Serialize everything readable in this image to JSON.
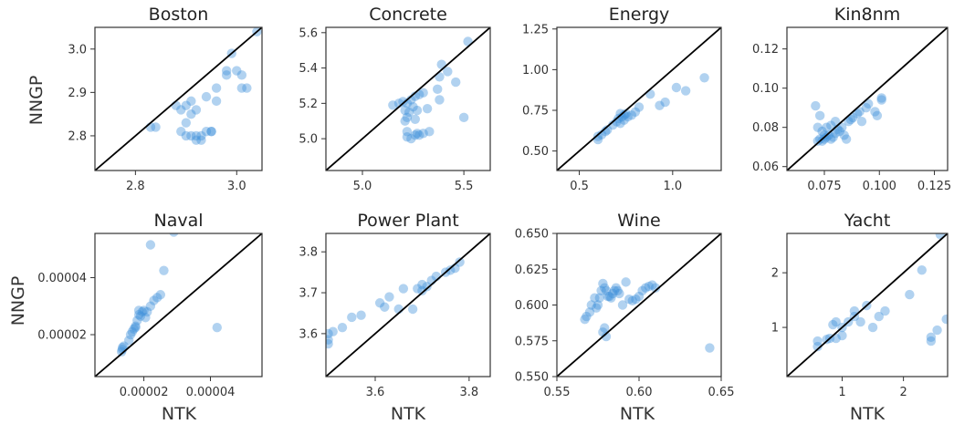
{
  "figure": {
    "ylabel": "NNGP",
    "xlabel": "NTK"
  },
  "style": {
    "point_color": "#3d8fd9",
    "diag_color": "#000000",
    "axis_color": "#333333"
  },
  "chart_data": [
    {
      "type": "scatter",
      "title": "Boston",
      "xlim": [
        2.72,
        3.05
      ],
      "ylim": [
        2.72,
        3.05
      ],
      "xticks": [
        2.8,
        3.0
      ],
      "yticks": [
        2.8,
        2.9,
        3.0
      ],
      "points": [
        [
          2.83,
          2.82
        ],
        [
          2.84,
          2.82
        ],
        [
          2.88,
          2.87
        ],
        [
          2.89,
          2.86
        ],
        [
          2.9,
          2.87
        ],
        [
          2.91,
          2.88
        ],
        [
          2.9,
          2.83
        ],
        [
          2.89,
          2.81
        ],
        [
          2.9,
          2.8
        ],
        [
          2.91,
          2.8
        ],
        [
          2.92,
          2.79
        ],
        [
          2.92,
          2.8
        ],
        [
          2.93,
          2.8
        ],
        [
          2.94,
          2.81
        ],
        [
          2.95,
          2.81
        ],
        [
          2.92,
          2.86
        ],
        [
          2.94,
          2.89
        ],
        [
          2.96,
          2.91
        ],
        [
          2.96,
          2.88
        ],
        [
          2.98,
          2.94
        ],
        [
          2.98,
          2.95
        ],
        [
          3.0,
          2.95
        ],
        [
          3.01,
          2.94
        ],
        [
          3.01,
          2.91
        ],
        [
          3.02,
          2.91
        ],
        [
          2.99,
          2.99
        ],
        [
          3.04,
          3.04
        ],
        [
          2.95,
          2.81
        ],
        [
          2.93,
          2.79
        ],
        [
          2.91,
          2.85
        ]
      ]
    },
    {
      "type": "scatter",
      "title": "Concrete",
      "xlim": [
        4.82,
        5.63
      ],
      "ylim": [
        4.82,
        5.63
      ],
      "xticks": [
        5.0,
        5.5
      ],
      "yticks": [
        5.0,
        5.2,
        5.4,
        5.6
      ],
      "points": [
        [
          5.15,
          5.19
        ],
        [
          5.18,
          5.2
        ],
        [
          5.2,
          5.21
        ],
        [
          5.22,
          5.2
        ],
        [
          5.24,
          5.22
        ],
        [
          5.26,
          5.24
        ],
        [
          5.28,
          5.25
        ],
        [
          5.3,
          5.26
        ],
        [
          5.21,
          5.16
        ],
        [
          5.23,
          5.15
        ],
        [
          5.22,
          5.12
        ],
        [
          5.21,
          5.1
        ],
        [
          5.22,
          5.04
        ],
        [
          5.22,
          5.01
        ],
        [
          5.24,
          5.0
        ],
        [
          5.26,
          5.02
        ],
        [
          5.27,
          5.03
        ],
        [
          5.28,
          5.02
        ],
        [
          5.3,
          5.03
        ],
        [
          5.33,
          5.04
        ],
        [
          5.26,
          5.11
        ],
        [
          5.27,
          5.16
        ],
        [
          5.32,
          5.17
        ],
        [
          5.37,
          5.28
        ],
        [
          5.38,
          5.35
        ],
        [
          5.39,
          5.42
        ],
        [
          5.42,
          5.38
        ],
        [
          5.46,
          5.32
        ],
        [
          5.5,
          5.12
        ],
        [
          5.52,
          5.55
        ],
        [
          5.38,
          5.22
        ],
        [
          5.25,
          5.18
        ]
      ]
    },
    {
      "type": "scatter",
      "title": "Energy",
      "xlim": [
        0.38,
        1.26
      ],
      "ylim": [
        0.38,
        1.26
      ],
      "xticks": [
        0.5,
        1.0
      ],
      "yticks": [
        0.5,
        0.75,
        1.0,
        1.25
      ],
      "points": [
        [
          0.6,
          0.57
        ],
        [
          0.6,
          0.59
        ],
        [
          0.62,
          0.6
        ],
        [
          0.64,
          0.62
        ],
        [
          0.65,
          0.63
        ],
        [
          0.68,
          0.66
        ],
        [
          0.7,
          0.68
        ],
        [
          0.71,
          0.7
        ],
        [
          0.73,
          0.71
        ],
        [
          0.74,
          0.72
        ],
        [
          0.75,
          0.73
        ],
        [
          0.74,
          0.69
        ],
        [
          0.76,
          0.71
        ],
        [
          0.72,
          0.67
        ],
        [
          0.78,
          0.72
        ],
        [
          0.8,
          0.74
        ],
        [
          0.82,
          0.77
        ],
        [
          0.88,
          0.85
        ],
        [
          0.93,
          0.78
        ],
        [
          0.96,
          0.8
        ],
        [
          1.02,
          0.89
        ],
        [
          1.07,
          0.87
        ],
        [
          1.17,
          0.95
        ],
        [
          0.72,
          0.73
        ]
      ]
    },
    {
      "type": "scatter",
      "title": "Kin8nm",
      "xlim": [
        0.058,
        0.131
      ],
      "ylim": [
        0.058,
        0.131
      ],
      "xticks": [
        0.075,
        0.1,
        0.125
      ],
      "yticks": [
        0.06,
        0.08,
        0.1,
        0.12
      ],
      "points": [
        [
          0.071,
          0.091
        ],
        [
          0.073,
          0.086
        ],
        [
          0.072,
          0.08
        ],
        [
          0.074,
          0.078
        ],
        [
          0.076,
          0.08
        ],
        [
          0.073,
          0.074
        ],
        [
          0.074,
          0.073
        ],
        [
          0.075,
          0.074
        ],
        [
          0.076,
          0.075
        ],
        [
          0.077,
          0.076
        ],
        [
          0.078,
          0.074
        ],
        [
          0.079,
          0.075
        ],
        [
          0.08,
          0.077
        ],
        [
          0.081,
          0.079
        ],
        [
          0.082,
          0.078
        ],
        [
          0.083,
          0.08
        ],
        [
          0.084,
          0.076
        ],
        [
          0.085,
          0.074
        ],
        [
          0.086,
          0.083
        ],
        [
          0.087,
          0.084
        ],
        [
          0.088,
          0.085
        ],
        [
          0.09,
          0.087
        ],
        [
          0.091,
          0.088
        ],
        [
          0.092,
          0.083
        ],
        [
          0.094,
          0.09
        ],
        [
          0.095,
          0.092
        ],
        [
          0.098,
          0.088
        ],
        [
          0.099,
          0.086
        ],
        [
          0.101,
          0.094
        ],
        [
          0.101,
          0.095
        ],
        [
          0.072,
          0.073
        ],
        [
          0.075,
          0.076
        ],
        [
          0.078,
          0.081
        ],
        [
          0.08,
          0.083
        ]
      ]
    },
    {
      "type": "scatter",
      "title": "Naval",
      "xlim": [
        5.3e-06,
        5.55e-05
      ],
      "ylim": [
        5.3e-06,
        5.55e-05
      ],
      "xticks": [
        2e-05,
        4e-05
      ],
      "yticks": [
        2e-05,
        4e-05
      ],
      "xtick_labels": [
        "0.00002",
        "0.00004"
      ],
      "ytick_labels": [
        "0.00002",
        "0.00004"
      ],
      "points": [
        [
          1.33e-05,
          1.4e-05
        ],
        [
          1.35e-05,
          1.48e-05
        ],
        [
          1.36e-05,
          1.55e-05
        ],
        [
          1.4e-05,
          1.6e-05
        ],
        [
          1.55e-05,
          1.8e-05
        ],
        [
          1.6e-05,
          2e-05
        ],
        [
          1.65e-05,
          2.1e-05
        ],
        [
          1.7e-05,
          2.2e-05
        ],
        [
          1.75e-05,
          2.25e-05
        ],
        [
          1.8e-05,
          2.5e-05
        ],
        [
          1.85e-05,
          2.7e-05
        ],
        [
          1.9e-05,
          2.65e-05
        ],
        [
          1.95e-05,
          2.8e-05
        ],
        [
          2e-05,
          2.85e-05
        ],
        [
          2.05e-05,
          2.6e-05
        ],
        [
          2.1e-05,
          2.8e-05
        ],
        [
          2.2e-05,
          3e-05
        ],
        [
          2.3e-05,
          3.2e-05
        ],
        [
          2.4e-05,
          3.3e-05
        ],
        [
          2.5e-05,
          3.4e-05
        ],
        [
          2.6e-05,
          4.25e-05
        ],
        [
          2.2e-05,
          5.15e-05
        ],
        [
          2.9e-05,
          5.6e-05
        ],
        [
          4.2e-05,
          2.25e-05
        ],
        [
          1.75e-05,
          2.3e-05
        ],
        [
          1.85e-05,
          2.85e-05
        ]
      ]
    },
    {
      "type": "scatter",
      "title": "Power Plant",
      "xlim": [
        3.495,
        3.845
      ],
      "ylim": [
        3.495,
        3.845
      ],
      "xticks": [
        3.6,
        3.8
      ],
      "yticks": [
        3.6,
        3.7,
        3.8
      ],
      "points": [
        [
          3.5,
          3.575
        ],
        [
          3.5,
          3.585
        ],
        [
          3.5,
          3.6
        ],
        [
          3.51,
          3.605
        ],
        [
          3.53,
          3.615
        ],
        [
          3.55,
          3.64
        ],
        [
          3.57,
          3.645
        ],
        [
          3.61,
          3.675
        ],
        [
          3.62,
          3.665
        ],
        [
          3.63,
          3.69
        ],
        [
          3.65,
          3.66
        ],
        [
          3.66,
          3.71
        ],
        [
          3.68,
          3.66
        ],
        [
          3.69,
          3.71
        ],
        [
          3.7,
          3.705
        ],
        [
          3.71,
          3.715
        ],
        [
          3.72,
          3.73
        ],
        [
          3.73,
          3.74
        ],
        [
          3.75,
          3.75
        ],
        [
          3.76,
          3.755
        ],
        [
          3.77,
          3.76
        ],
        [
          3.78,
          3.775
        ],
        [
          3.7,
          3.72
        ]
      ]
    },
    {
      "type": "scatter",
      "title": "Wine",
      "xlim": [
        0.55,
        0.65
      ],
      "ylim": [
        0.55,
        0.65
      ],
      "xticks": [
        0.55,
        0.6,
        0.65
      ],
      "yticks": [
        0.55,
        0.575,
        0.6,
        0.625,
        0.65
      ],
      "xtick_labels": [
        "0.55",
        "0.60",
        "0.65"
      ],
      "ytick_labels": [
        "0.550",
        "0.575",
        "0.600",
        "0.625",
        "0.650"
      ],
      "points": [
        [
          0.567,
          0.59
        ],
        [
          0.568,
          0.592
        ],
        [
          0.57,
          0.595
        ],
        [
          0.571,
          0.6
        ],
        [
          0.573,
          0.605
        ],
        [
          0.575,
          0.6
        ],
        [
          0.576,
          0.605
        ],
        [
          0.577,
          0.61
        ],
        [
          0.578,
          0.615
        ],
        [
          0.579,
          0.612
        ],
        [
          0.58,
          0.61
        ],
        [
          0.581,
          0.606
        ],
        [
          0.582,
          0.606
        ],
        [
          0.583,
          0.605
        ],
        [
          0.584,
          0.608
        ],
        [
          0.585,
          0.61
        ],
        [
          0.586,
          0.612
        ],
        [
          0.587,
          0.61
        ],
        [
          0.588,
          0.608
        ],
        [
          0.59,
          0.6
        ],
        [
          0.592,
          0.616
        ],
        [
          0.594,
          0.604
        ],
        [
          0.596,
          0.603
        ],
        [
          0.598,
          0.604
        ],
        [
          0.6,
          0.606
        ],
        [
          0.602,
          0.61
        ],
        [
          0.604,
          0.612
        ],
        [
          0.606,
          0.613
        ],
        [
          0.608,
          0.614
        ],
        [
          0.61,
          0.612
        ],
        [
          0.578,
          0.581
        ],
        [
          0.579,
          0.584
        ],
        [
          0.58,
          0.578
        ],
        [
          0.643,
          0.57
        ],
        [
          0.574,
          0.598
        ]
      ]
    },
    {
      "type": "scatter",
      "title": "Yacht",
      "xlim": [
        0.1,
        2.72
      ],
      "ylim": [
        0.1,
        2.72
      ],
      "xticks": [
        1,
        2
      ],
      "yticks": [
        1,
        2
      ],
      "points": [
        [
          0.6,
          0.65
        ],
        [
          0.6,
          0.75
        ],
        [
          0.75,
          0.78
        ],
        [
          0.8,
          0.8
        ],
        [
          0.85,
          1.05
        ],
        [
          0.9,
          1.1
        ],
        [
          0.9,
          0.8
        ],
        [
          1.0,
          0.85
        ],
        [
          1.1,
          1.1
        ],
        [
          1.2,
          1.2
        ],
        [
          1.2,
          1.3
        ],
        [
          1.3,
          1.1
        ],
        [
          1.4,
          1.4
        ],
        [
          1.5,
          1.0
        ],
        [
          1.6,
          1.2
        ],
        [
          1.7,
          1.3
        ],
        [
          2.1,
          1.6
        ],
        [
          2.3,
          2.05
        ],
        [
          2.45,
          0.75
        ],
        [
          2.45,
          0.82
        ],
        [
          2.55,
          0.95
        ],
        [
          2.7,
          1.15
        ],
        [
          2.6,
          2.7
        ],
        [
          1.0,
          1.0
        ]
      ]
    }
  ]
}
